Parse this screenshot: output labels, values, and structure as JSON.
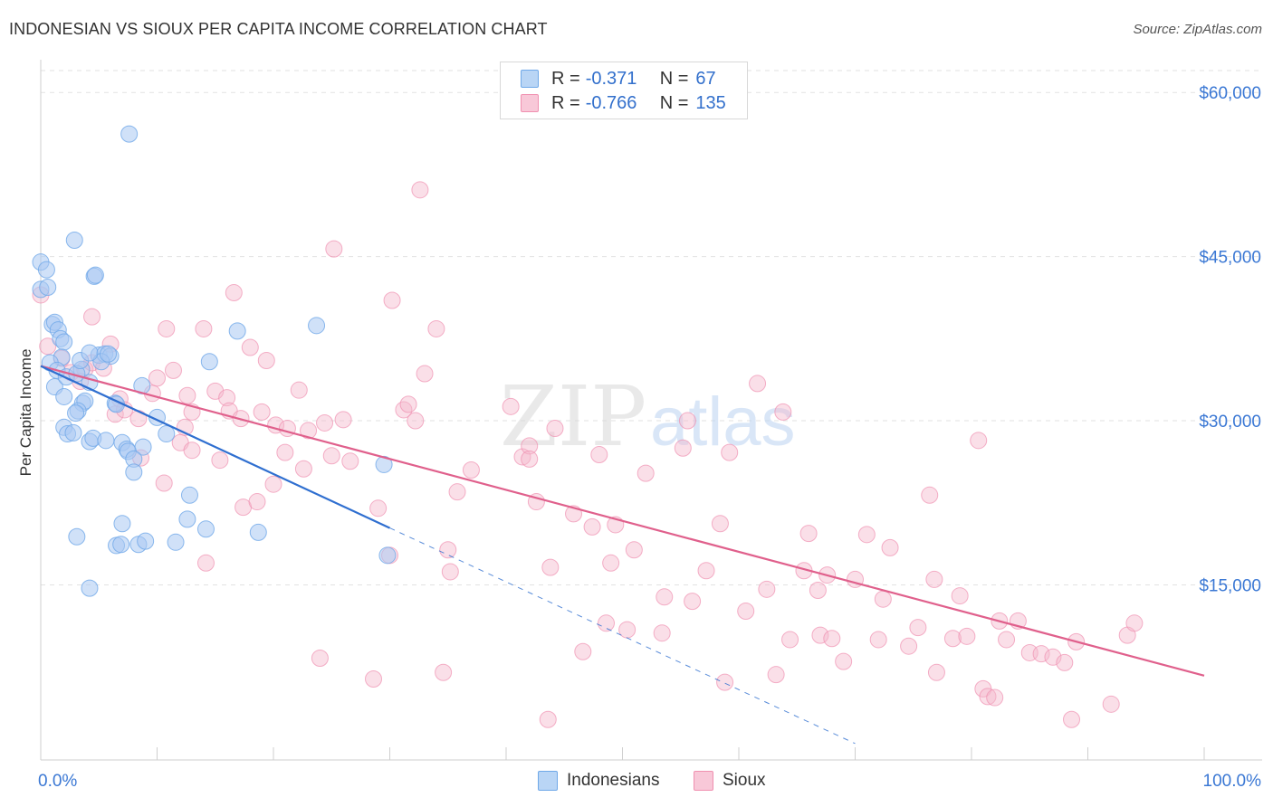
{
  "header": {
    "title": "INDONESIAN VS SIOUX PER CAPITA INCOME CORRELATION CHART",
    "source": "Source: ZipAtlas.com"
  },
  "watermark": {
    "zip": "ZIP",
    "atlas": "atlas"
  },
  "legend": {
    "rows": [
      {
        "r_label": "R =",
        "r_value": "-0.371",
        "n_label": "N =",
        "n_value": "67",
        "color": "#6fa8e8"
      },
      {
        "r_label": "R =",
        "r_value": "-0.766",
        "n_label": "N =",
        "n_value": "135",
        "color": "#f090b0"
      }
    ]
  },
  "bottom_legend": {
    "items": [
      {
        "label": "Indonesians"
      },
      {
        "label": "Sioux"
      }
    ]
  },
  "colors": {
    "blue_fill": "#a9c9f2",
    "blue_stroke": "#6fa8e8",
    "blue_line": "#2f6fd0",
    "pink_fill": "#f5b9cc",
    "pink_stroke": "#f090b0",
    "pink_line": "#e0608c",
    "axis_text": "#3b78d4",
    "grid": "#e2e2e2"
  },
  "chart_data": {
    "type": "scatter",
    "title": "INDONESIAN VS SIOUX PER CAPITA INCOME CORRELATION CHART",
    "xlabel": "",
    "ylabel": "Per Capita Income",
    "xlim": [
      0,
      100
    ],
    "ylim": [
      -1000,
      62000
    ],
    "x_tick_labels": [
      "0.0%",
      "100.0%"
    ],
    "y_ticks": [
      15000,
      30000,
      45000,
      60000
    ],
    "y_tick_labels": [
      "$15,000",
      "$30,000",
      "$45,000",
      "$60,000"
    ],
    "grid": true,
    "legend_position": "top-center",
    "series": [
      {
        "name": "Indonesians",
        "r": -0.371,
        "n": 67,
        "trend": {
          "x0": 0,
          "y0": 35000,
          "x1": 30,
          "y1": 20200,
          "dashed_to_x": 70,
          "dashed_to_y": 500
        },
        "points": [
          [
            0,
            44500
          ],
          [
            0,
            42000
          ],
          [
            0.5,
            43800
          ],
          [
            0.6,
            42200
          ],
          [
            1,
            38800
          ],
          [
            1.2,
            39000
          ],
          [
            1.5,
            38300
          ],
          [
            1.7,
            37500
          ],
          [
            2,
            37200
          ],
          [
            1.8,
            35800
          ],
          [
            0.8,
            35300
          ],
          [
            1.4,
            34600
          ],
          [
            1.2,
            33100
          ],
          [
            2.2,
            34000
          ],
          [
            3.5,
            34700
          ],
          [
            3.1,
            34300
          ],
          [
            4.2,
            33500
          ],
          [
            5,
            36000
          ],
          [
            5.5,
            36100
          ],
          [
            6,
            35900
          ],
          [
            5.2,
            35400
          ],
          [
            3.4,
            35500
          ],
          [
            4.2,
            36200
          ],
          [
            5.8,
            36100
          ],
          [
            2,
            32200
          ],
          [
            3.6,
            31600
          ],
          [
            3.8,
            31800
          ],
          [
            3.2,
            30900
          ],
          [
            6.4,
            31600
          ],
          [
            6.5,
            31500
          ],
          [
            3,
            30700
          ],
          [
            2,
            29400
          ],
          [
            2.3,
            28800
          ],
          [
            2.8,
            28900
          ],
          [
            4.2,
            28100
          ],
          [
            4.5,
            28400
          ],
          [
            5.6,
            28200
          ],
          [
            7,
            28000
          ],
          [
            7.4,
            27400
          ],
          [
            8.8,
            27600
          ],
          [
            10,
            30300
          ],
          [
            10.8,
            28800
          ],
          [
            7.5,
            27200
          ],
          [
            8,
            26500
          ],
          [
            8,
            25300
          ],
          [
            8.7,
            33200
          ],
          [
            14.5,
            35400
          ],
          [
            16.9,
            38200
          ],
          [
            23.7,
            38700
          ],
          [
            29.5,
            26000
          ],
          [
            12.8,
            23200
          ],
          [
            12.6,
            21000
          ],
          [
            14.2,
            20100
          ],
          [
            7,
            20600
          ],
          [
            3.1,
            19400
          ],
          [
            6.5,
            18600
          ],
          [
            6.9,
            18700
          ],
          [
            8.4,
            18700
          ],
          [
            9,
            19000
          ],
          [
            11.6,
            18900
          ],
          [
            18.7,
            19800
          ],
          [
            29.8,
            17700
          ],
          [
            4.2,
            14700
          ],
          [
            4.6,
            43200
          ],
          [
            4.7,
            43300
          ],
          [
            2.9,
            46500
          ],
          [
            7.6,
            56200
          ]
        ]
      },
      {
        "name": "Sioux",
        "r": -0.766,
        "n": 135,
        "trend": {
          "x0": 0,
          "y0": 35000,
          "x1": 100,
          "y1": 6700
        },
        "points": [
          [
            0,
            41500
          ],
          [
            0.6,
            36800
          ],
          [
            1.8,
            35700
          ],
          [
            2.6,
            34400
          ],
          [
            3.4,
            33600
          ],
          [
            3.8,
            34700
          ],
          [
            4.4,
            35300
          ],
          [
            5.4,
            34800
          ],
          [
            6,
            37000
          ],
          [
            4.4,
            39500
          ],
          [
            6.4,
            30600
          ],
          [
            6.8,
            32000
          ],
          [
            7.2,
            31000
          ],
          [
            8.4,
            30200
          ],
          [
            8.6,
            26600
          ],
          [
            9.6,
            32500
          ],
          [
            10,
            33900
          ],
          [
            10.6,
            24300
          ],
          [
            10.8,
            38400
          ],
          [
            11.4,
            34600
          ],
          [
            12,
            28000
          ],
          [
            12.4,
            29400
          ],
          [
            12.6,
            32300
          ],
          [
            13,
            27300
          ],
          [
            13,
            30800
          ],
          [
            14,
            38400
          ],
          [
            14.2,
            17000
          ],
          [
            15,
            32700
          ],
          [
            15.4,
            26400
          ],
          [
            16,
            32100
          ],
          [
            16.2,
            30900
          ],
          [
            16.6,
            41700
          ],
          [
            17.2,
            30200
          ],
          [
            17.4,
            22100
          ],
          [
            18,
            36700
          ],
          [
            18.6,
            22600
          ],
          [
            19,
            30800
          ],
          [
            19.4,
            35500
          ],
          [
            20,
            24200
          ],
          [
            20.2,
            29600
          ],
          [
            21,
            27100
          ],
          [
            21.2,
            29300
          ],
          [
            22.2,
            32800
          ],
          [
            22.6,
            25600
          ],
          [
            23,
            29100
          ],
          [
            24,
            8300
          ],
          [
            24.4,
            29800
          ],
          [
            25,
            26800
          ],
          [
            25.2,
            45700
          ],
          [
            26,
            30100
          ],
          [
            26.6,
            26300
          ],
          [
            28.6,
            6400
          ],
          [
            29,
            22000
          ],
          [
            30,
            17700
          ],
          [
            30.2,
            41000
          ],
          [
            31.2,
            31000
          ],
          [
            31.6,
            31500
          ],
          [
            32.2,
            30000
          ],
          [
            32.6,
            51100
          ],
          [
            33,
            34300
          ],
          [
            34,
            38400
          ],
          [
            34.6,
            7000
          ],
          [
            35,
            18200
          ],
          [
            35.2,
            16200
          ],
          [
            35.8,
            23500
          ],
          [
            37,
            25500
          ],
          [
            40.4,
            31300
          ],
          [
            41.4,
            26700
          ],
          [
            42,
            27700
          ],
          [
            42,
            26500
          ],
          [
            42.6,
            22600
          ],
          [
            43.6,
            2700
          ],
          [
            43.8,
            16600
          ],
          [
            44.2,
            29300
          ],
          [
            45.8,
            21500
          ],
          [
            46.6,
            8900
          ],
          [
            47.4,
            20300
          ],
          [
            48,
            26900
          ],
          [
            48.6,
            11500
          ],
          [
            49,
            17000
          ],
          [
            49.4,
            20500
          ],
          [
            50.4,
            10900
          ],
          [
            51,
            18200
          ],
          [
            52,
            25200
          ],
          [
            53.4,
            10600
          ],
          [
            53.6,
            13900
          ],
          [
            55.2,
            27500
          ],
          [
            55.6,
            30000
          ],
          [
            56,
            13500
          ],
          [
            57.2,
            16300
          ],
          [
            58.4,
            20600
          ],
          [
            58.8,
            6100
          ],
          [
            59.2,
            27100
          ],
          [
            60.6,
            12600
          ],
          [
            61.6,
            33400
          ],
          [
            62.4,
            14600
          ],
          [
            63.2,
            6800
          ],
          [
            63.8,
            30800
          ],
          [
            64.4,
            10000
          ],
          [
            65.6,
            16300
          ],
          [
            66,
            19700
          ],
          [
            66.8,
            14500
          ],
          [
            67,
            10400
          ],
          [
            67.6,
            15900
          ],
          [
            68,
            10100
          ],
          [
            69,
            8000
          ],
          [
            70,
            15500
          ],
          [
            71,
            19600
          ],
          [
            72,
            10000
          ],
          [
            72.4,
            13700
          ],
          [
            73,
            18400
          ],
          [
            74.6,
            9400
          ],
          [
            75.4,
            11100
          ],
          [
            76.4,
            23200
          ],
          [
            76.8,
            15500
          ],
          [
            77,
            7000
          ],
          [
            78.4,
            10100
          ],
          [
            79,
            14000
          ],
          [
            79.6,
            10300
          ],
          [
            80.6,
            28200
          ],
          [
            81,
            5500
          ],
          [
            81.4,
            4800
          ],
          [
            82,
            4700
          ],
          [
            82.4,
            11700
          ],
          [
            83,
            10000
          ],
          [
            84,
            11700
          ],
          [
            85,
            8800
          ],
          [
            86,
            8700
          ],
          [
            87,
            8400
          ],
          [
            88,
            7900
          ],
          [
            88.6,
            2700
          ],
          [
            89,
            9800
          ],
          [
            92,
            4100
          ],
          [
            93.4,
            10400
          ],
          [
            94,
            11500
          ]
        ]
      }
    ]
  }
}
